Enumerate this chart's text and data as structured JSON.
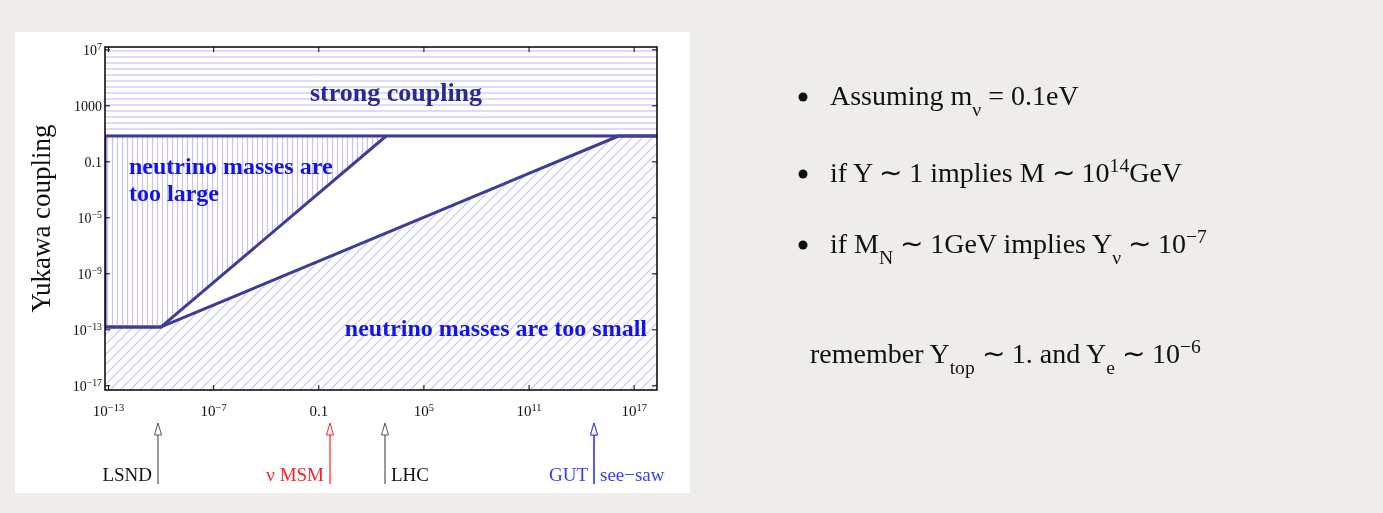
{
  "chart_data": [
    {
      "type": "area",
      "ylabel": "Yukawa coupling",
      "log": "xy",
      "xlim": [
        6.3e-14,
        2e+18
      ],
      "ylim": [
        5e-18,
        16000000.0
      ],
      "ref_lines": [
        {
          "axis": "y",
          "value": 7,
          "color": "#3d3d99"
        }
      ],
      "xticks": [
        {
          "value": 1e-13,
          "label": "10$^{−13}$"
        },
        {
          "value": 1e-07,
          "label": "10$^{−7}$"
        },
        0.1,
        {
          "value": 100000.0,
          "label": "10$^{5}$"
        },
        {
          "value": 100000000000.0,
          "label": "10$^{11}$"
        },
        {
          "value": 1e+17,
          "label": "10$^{17}$"
        }
      ],
      "yticks": [
        {
          "value": 10000000.0,
          "label": "10$^{7}$"
        },
        1000,
        0.1,
        {
          "value": 1e-05,
          "label": "10$^{−5}$"
        },
        {
          "value": 1e-09,
          "label": "10$^{−9}$"
        },
        {
          "value": 1e-13,
          "label": "10$^{−13}$"
        },
        {
          "value": 1e-17,
          "label": "10$^{−17}$"
        }
      ],
      "bands": [
        {
          "axis": "y",
          "from": 7,
          "to": 16000000.0,
          "label": "strong coupling",
          "color": "#c4c4f4"
        }
      ],
      "series": [
        {
          "name": "neutrino masses are too small",
          "color": "#3d3d99",
          "x": [
            6.3e-14,
            1e-10,
            1.3e+16,
            2e+18
          ],
          "values": [
            1.6e-13,
            1.6e-13,
            7,
            7
          ]
        },
        {
          "name": "neutrino masses are too large",
          "color": "#3d3d99",
          "x": [
            6.3e-14,
            6.3e-14,
            1e-10,
            700
          ],
          "values": [
            7,
            1.6e-13,
            1.6e-13,
            7
          ]
        }
      ],
      "annotations": [
        "LSND",
        "ν MSM",
        "LHC",
        "GUT",
        "see−saw"
      ]
    },
    {
      "type": "other",
      "annotations": [
        "Assuming m$_{ν}$ = 0.1eV",
        "if Y ∼ 1 implies M ∼ 10$^{14}$GeV",
        "if M$_{N}$ ∼ 1GeV implies Y$_{ν}$ ∼ 10$^{−7}$",
        "remember Y$_{top}$ ∼ 1. and Y$_{e}$ ∼ 10$^{−6}$"
      ]
    }
  ]
}
